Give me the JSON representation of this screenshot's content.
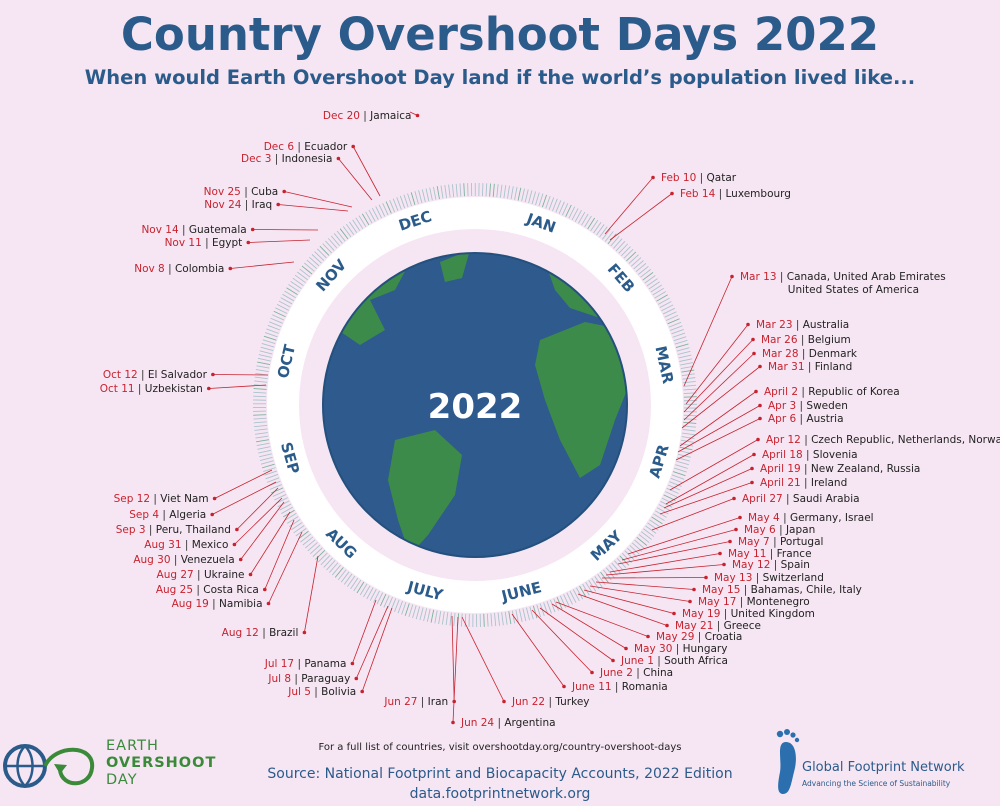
{
  "title": "Country Overshoot Days 2022",
  "subtitle": "When would Earth Overshoot Day land if the world’s population lived like...",
  "globe_label": "2022",
  "months": [
    "JAN",
    "FEB",
    "MAR",
    "APR",
    "MAY",
    "JUNE",
    "JULY",
    "AUG",
    "SEP",
    "OCT",
    "NOV",
    "DEC"
  ],
  "colors": {
    "date": "#c8222f",
    "title": "#2b5b8a",
    "background": "#f6e6f3"
  },
  "entries": [
    {
      "date": "Dec 20",
      "name": "Jamaica"
    },
    {
      "date": "Dec 6",
      "name": "Ecuador"
    },
    {
      "date": "Dec 3",
      "name": "Indonesia"
    },
    {
      "date": "Nov 25",
      "name": "Cuba"
    },
    {
      "date": "Nov 24",
      "name": "Iraq"
    },
    {
      "date": "Nov 14",
      "name": "Guatemala"
    },
    {
      "date": "Nov 11",
      "name": "Egypt"
    },
    {
      "date": "Nov 8",
      "name": "Colombia"
    },
    {
      "date": "Oct 12",
      "name": "El Salvador"
    },
    {
      "date": "Oct 11",
      "name": "Uzbekistan"
    },
    {
      "date": "Sep 12",
      "name": "Viet Nam"
    },
    {
      "date": "Sep 4",
      "name": "Algeria"
    },
    {
      "date": "Sep 3",
      "name": "Peru, Thailand"
    },
    {
      "date": "Aug 31",
      "name": "Mexico"
    },
    {
      "date": "Aug 30",
      "name": "Venezuela"
    },
    {
      "date": "Aug 27",
      "name": "Ukraine"
    },
    {
      "date": "Aug 25",
      "name": "Costa Rica"
    },
    {
      "date": "Aug 19",
      "name": "Namibia"
    },
    {
      "date": "Aug 12",
      "name": "Brazil"
    },
    {
      "date": "Jul 17",
      "name": "Panama"
    },
    {
      "date": "Jul 8",
      "name": "Paraguay"
    },
    {
      "date": "Jul 5",
      "name": "Bolivia"
    },
    {
      "date": "Jun 27",
      "name": "Iran"
    },
    {
      "date": "Jun 24",
      "name": "Argentina"
    },
    {
      "date": "Jun 22",
      "name": "Turkey"
    },
    {
      "date": "June 11",
      "name": "Romania"
    },
    {
      "date": "June 2",
      "name": "China"
    },
    {
      "date": "June 1",
      "name": "South Africa"
    },
    {
      "date": "May 30",
      "name": "Hungary"
    },
    {
      "date": "May 29",
      "name": "Croatia"
    },
    {
      "date": "May 21",
      "name": "Greece"
    },
    {
      "date": "May 19",
      "name": "United Kingdom"
    },
    {
      "date": "May 17",
      "name": "Montenegro"
    },
    {
      "date": "May 15",
      "name": "Bahamas, Chile, Italy"
    },
    {
      "date": "May 13",
      "name": "Switzerland"
    },
    {
      "date": "May 12",
      "name": "Spain"
    },
    {
      "date": "May 11",
      "name": "France"
    },
    {
      "date": "May 7",
      "name": "Portugal"
    },
    {
      "date": "May 6",
      "name": "Japan"
    },
    {
      "date": "May 4",
      "name": "Germany, Israel"
    },
    {
      "date": "April 27",
      "name": "Saudi Arabia"
    },
    {
      "date": "April 21",
      "name": "Ireland"
    },
    {
      "date": "April 19",
      "name": "New Zealand, Russia"
    },
    {
      "date": "April 18",
      "name": "Slovenia"
    },
    {
      "date": "Apr 12",
      "name": "Czech Republic, Netherlands, Norway"
    },
    {
      "date": "Apr 6",
      "name": "Austria"
    },
    {
      "date": "Apr 3",
      "name": "Sweden"
    },
    {
      "date": "April 2",
      "name": "Republic of Korea"
    },
    {
      "date": "Mar 31",
      "name": "Finland"
    },
    {
      "date": "Mar 28",
      "name": "Denmark"
    },
    {
      "date": "Mar 26",
      "name": "Belgium"
    },
    {
      "date": "Mar 23",
      "name": "Australia"
    },
    {
      "date": "Mar 13",
      "name": "Canada, United Arab Emirates",
      "name2": "United States of America"
    },
    {
      "date": "Feb 14",
      "name": "Luxembourg"
    },
    {
      "date": "Feb 10",
      "name": "Qatar"
    }
  ],
  "footer_note": "For a full list of countries, visit overshootday.org/country-overshoot-days",
  "source": "Source: National Footprint and Biocapacity Accounts, 2022 Edition",
  "source_url": "data.footprintnetwork.org",
  "logo_left": {
    "line1": "EARTH",
    "line2": "OVERSHOOT",
    "line3": "DAY"
  },
  "logo_right": {
    "name": "Global Footprint Network",
    "tagline": "Advancing the Science of Sustainability"
  }
}
